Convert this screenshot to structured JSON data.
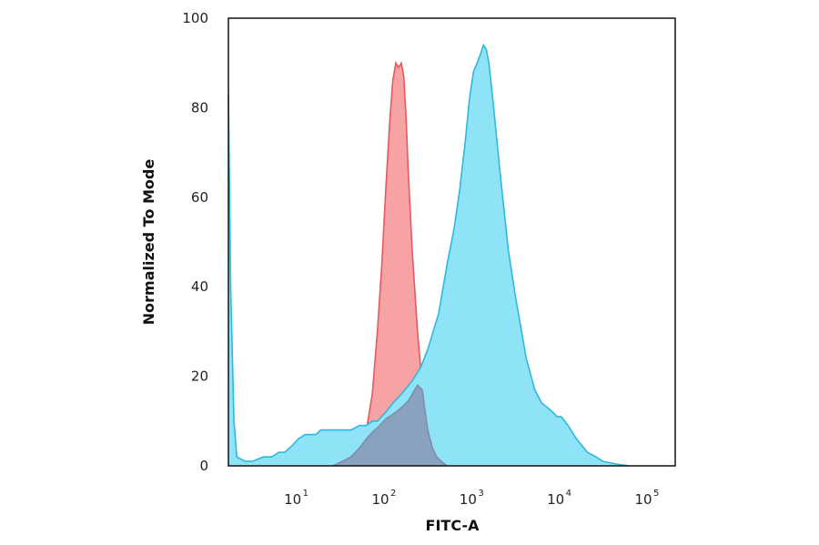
{
  "chart_data": {
    "type": "area",
    "title": "",
    "xlabel": "FITC-A",
    "ylabel": "Normalized To Mode",
    "x_scale": "log",
    "xlim": [
      1.6,
      200000
    ],
    "ylim": [
      0,
      100
    ],
    "x_ticks": [
      {
        "value": 10,
        "base": "10",
        "exp": "1"
      },
      {
        "value": 100,
        "base": "10",
        "exp": "2"
      },
      {
        "value": 1000,
        "base": "10",
        "exp": "3"
      },
      {
        "value": 10000,
        "base": "10",
        "exp": "4"
      },
      {
        "value": 100000,
        "base": "10",
        "exp": "5"
      }
    ],
    "y_ticks": [
      0,
      20,
      40,
      60,
      80,
      100
    ],
    "grid": false,
    "legend": "none",
    "series": [
      {
        "color": "#e8595d",
        "fill": "#f7a2a4",
        "x": [
          25,
          32,
          40,
          50,
          60,
          70,
          80,
          90,
          100,
          110,
          120,
          130,
          140,
          150,
          160,
          170,
          180,
          200,
          230,
          260,
          300,
          340,
          380,
          430,
          500
        ],
        "y": [
          0,
          1,
          2,
          4,
          8,
          16,
          30,
          45,
          62,
          76,
          86,
          90,
          89,
          90,
          87,
          78,
          66,
          48,
          30,
          18,
          8,
          4,
          2,
          1,
          0
        ]
      },
      {
        "color": "#2fb8dd",
        "fill": "#8fe3f7",
        "x": [
          1.6,
          1.7,
          1.85,
          2,
          2.5,
          3,
          4,
          5,
          6,
          7,
          8,
          9,
          10,
          12,
          14,
          16,
          18,
          20,
          25,
          30,
          35,
          40,
          50,
          60,
          70,
          80,
          100,
          120,
          150,
          200,
          250,
          300,
          400,
          500,
          600,
          700,
          800,
          900,
          1000,
          1100,
          1200,
          1300,
          1400,
          1500,
          1700,
          2000,
          2500,
          3000,
          4000,
          5000,
          6000,
          7000,
          8000,
          9000,
          10000,
          12000,
          15000,
          20000,
          25000,
          30000,
          40000,
          50000,
          60000
        ],
        "y": [
          83,
          40,
          10,
          2,
          1,
          1,
          2,
          2,
          3,
          3,
          4,
          5,
          6,
          7,
          7,
          7,
          8,
          8,
          8,
          8,
          8,
          8,
          9,
          9,
          10,
          10,
          12,
          14,
          16,
          19,
          22,
          26,
          34,
          45,
          53,
          62,
          72,
          82,
          88,
          90,
          92,
          94,
          93,
          90,
          80,
          66,
          48,
          38,
          24,
          17,
          14,
          13,
          12,
          11,
          11,
          9,
          6,
          3,
          2,
          1,
          0.5,
          0.2,
          0
        ]
      },
      {
        "color": "#7c8fa8",
        "fill": "#8aa1bf",
        "x": [
          25,
          32,
          40,
          50,
          60,
          70,
          80,
          90,
          100,
          110,
          120,
          130,
          140,
          150,
          160,
          170,
          180,
          200,
          230,
          260,
          300,
          340,
          380,
          430,
          500
        ],
        "y": [
          0,
          1,
          2,
          4,
          6,
          7.5,
          8.5,
          9.5,
          10.5,
          11,
          11.5,
          12,
          12.5,
          13,
          13.5,
          14,
          14.5,
          16,
          18,
          17,
          8,
          4,
          2,
          1,
          0
        ]
      }
    ]
  }
}
